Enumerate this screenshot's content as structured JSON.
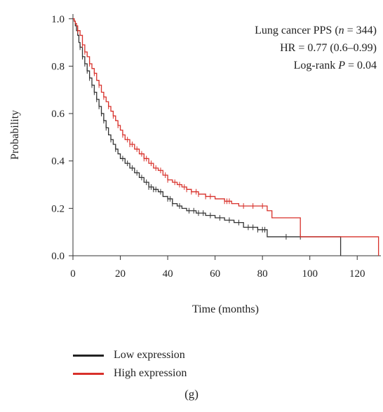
{
  "chart_data": {
    "type": "line",
    "subtype": "kaplan-meier",
    "xlabel": "Time (months)",
    "ylabel": "Probability",
    "xlim": [
      0,
      130
    ],
    "ylim": [
      0,
      1.02
    ],
    "xticks": [
      0,
      20,
      40,
      60,
      80,
      100,
      120
    ],
    "yticks": [
      0.0,
      0.2,
      0.4,
      0.6,
      0.8,
      1.0
    ],
    "ytick_labels": [
      "0.0",
      "0.2",
      "0.4",
      "0.6",
      "0.8",
      "1.0"
    ],
    "grid": false,
    "legend_position": "bottom-left",
    "annotation": {
      "line1_prefix": "Lung cancer PPS (",
      "line1_italic": "n",
      "line1_suffix": " = 344)",
      "line2": "HR = 0.77 (0.6–0.99)",
      "line3_prefix": "Log-rank ",
      "line3_italic": "P",
      "line3_suffix": " = 0.04"
    },
    "series": [
      {
        "name": "Low expression",
        "color": "#333333",
        "steps": [
          [
            0,
            1.0
          ],
          [
            0.5,
            0.99
          ],
          [
            1,
            0.97
          ],
          [
            1.5,
            0.95
          ],
          [
            2,
            0.93
          ],
          [
            2.5,
            0.9
          ],
          [
            3,
            0.88
          ],
          [
            4,
            0.84
          ],
          [
            5,
            0.81
          ],
          [
            6,
            0.78
          ],
          [
            7,
            0.75
          ],
          [
            8,
            0.72
          ],
          [
            9,
            0.69
          ],
          [
            10,
            0.66
          ],
          [
            11,
            0.63
          ],
          [
            12,
            0.6
          ],
          [
            13,
            0.57
          ],
          [
            14,
            0.54
          ],
          [
            15,
            0.51
          ],
          [
            16,
            0.49
          ],
          [
            17,
            0.47
          ],
          [
            18,
            0.45
          ],
          [
            19,
            0.43
          ],
          [
            20,
            0.41
          ],
          [
            22,
            0.39
          ],
          [
            24,
            0.37
          ],
          [
            26,
            0.35
          ],
          [
            28,
            0.33
          ],
          [
            30,
            0.31
          ],
          [
            32,
            0.29
          ],
          [
            34,
            0.28
          ],
          [
            36,
            0.27
          ],
          [
            38,
            0.25
          ],
          [
            40,
            0.24
          ],
          [
            42,
            0.22
          ],
          [
            44,
            0.21
          ],
          [
            46,
            0.2
          ],
          [
            48,
            0.19
          ],
          [
            52,
            0.18
          ],
          [
            56,
            0.17
          ],
          [
            60,
            0.16
          ],
          [
            64,
            0.15
          ],
          [
            68,
            0.14
          ],
          [
            72,
            0.12
          ],
          [
            78,
            0.11
          ],
          [
            82,
            0.08
          ],
          [
            113,
            0.08
          ],
          [
            113,
            0.0
          ]
        ],
        "censor_x": [
          3,
          4,
          5,
          6,
          7,
          8,
          9,
          10,
          11,
          12,
          13,
          14,
          16,
          18,
          21,
          23,
          25,
          27,
          29,
          31,
          32,
          33,
          34,
          35,
          37,
          40,
          41,
          42,
          45,
          49,
          51,
          53,
          55,
          58,
          62,
          66,
          70,
          74,
          76,
          78,
          80,
          81,
          90,
          96
        ]
      },
      {
        "name": "High expression",
        "color": "#d8302a",
        "steps": [
          [
            0,
            1.0
          ],
          [
            0.5,
            0.99
          ],
          [
            1,
            0.98
          ],
          [
            1.5,
            0.97
          ],
          [
            2,
            0.95
          ],
          [
            3,
            0.93
          ],
          [
            4,
            0.89
          ],
          [
            5,
            0.86
          ],
          [
            6,
            0.84
          ],
          [
            7,
            0.81
          ],
          [
            8,
            0.79
          ],
          [
            9,
            0.77
          ],
          [
            10,
            0.74
          ],
          [
            11,
            0.72
          ],
          [
            12,
            0.69
          ],
          [
            13,
            0.67
          ],
          [
            14,
            0.65
          ],
          [
            15,
            0.63
          ],
          [
            16,
            0.61
          ],
          [
            17,
            0.59
          ],
          [
            18,
            0.57
          ],
          [
            19,
            0.55
          ],
          [
            20,
            0.53
          ],
          [
            21,
            0.51
          ],
          [
            22,
            0.49
          ],
          [
            24,
            0.47
          ],
          [
            26,
            0.45
          ],
          [
            28,
            0.43
          ],
          [
            30,
            0.41
          ],
          [
            32,
            0.39
          ],
          [
            34,
            0.37
          ],
          [
            36,
            0.36
          ],
          [
            38,
            0.34
          ],
          [
            40,
            0.32
          ],
          [
            42,
            0.31
          ],
          [
            44,
            0.3
          ],
          [
            46,
            0.29
          ],
          [
            48,
            0.28
          ],
          [
            50,
            0.27
          ],
          [
            53,
            0.26
          ],
          [
            56,
            0.25
          ],
          [
            60,
            0.24
          ],
          [
            64,
            0.23
          ],
          [
            67,
            0.22
          ],
          [
            70,
            0.21
          ],
          [
            82,
            0.19
          ],
          [
            84,
            0.16
          ],
          [
            96,
            0.16
          ],
          [
            96,
            0.08
          ],
          [
            129,
            0.08
          ],
          [
            129,
            0.0
          ]
        ],
        "censor_x": [
          2,
          4,
          5,
          7,
          9,
          11,
          13,
          15,
          17,
          19,
          21,
          23,
          24,
          25,
          27,
          29,
          30,
          31,
          33,
          35,
          37,
          39,
          40,
          43,
          45,
          47,
          48,
          50,
          52,
          53,
          56,
          58,
          64,
          65,
          66,
          72,
          76,
          80
        ]
      }
    ]
  },
  "legend": {
    "items": [
      {
        "label": "Low expression",
        "color": "#222222"
      },
      {
        "label": "High expression",
        "color": "#d8302a"
      }
    ]
  },
  "panel_label": "(g)"
}
